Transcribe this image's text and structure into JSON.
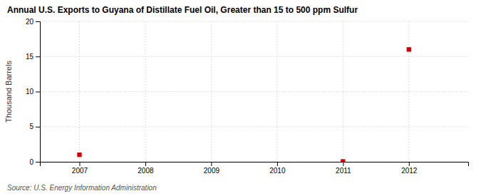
{
  "chart_data": {
    "type": "scatter",
    "title": "Annual U.S. Exports to Guyana of Distillate Fuel Oil, Greater than 15 to 500 ppm Sulfur",
    "ylabel": "Thousand Barrels",
    "source": "Source: U.S. Energy Information Administration",
    "x": [
      2007,
      2008,
      2009,
      2010,
      2011,
      2012
    ],
    "values": [
      1.0,
      null,
      null,
      null,
      0.05,
      16.0
    ],
    "xlim": [
      2006.4,
      2012.9
    ],
    "ylim": [
      0,
      20
    ],
    "xticks": [
      2007,
      2008,
      2009,
      2010,
      2011,
      2012
    ],
    "yticks": [
      0,
      5,
      10,
      15,
      20
    ],
    "color": "#cc0000",
    "marker": "square",
    "grid": true
  }
}
